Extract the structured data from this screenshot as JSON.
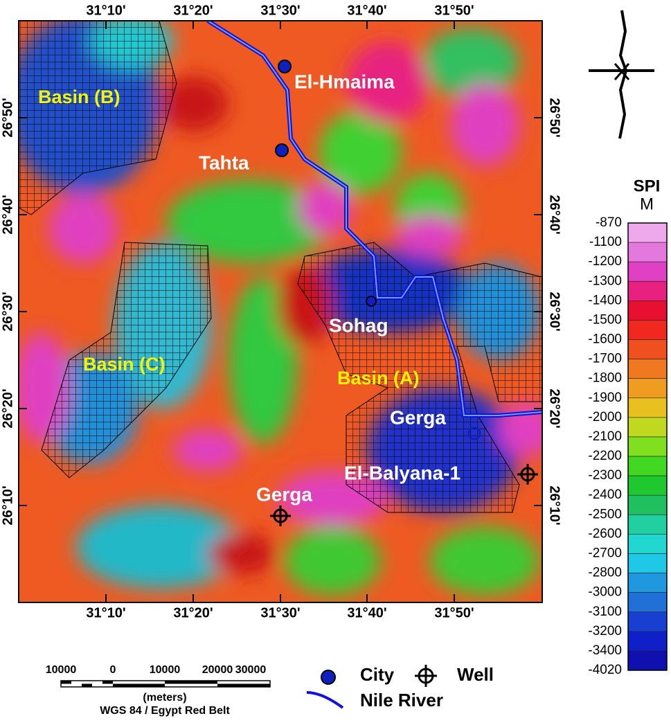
{
  "map": {
    "x_labels_top": [
      "31°10'",
      "31°20'",
      "31°30'",
      "31°40'",
      "31°50'"
    ],
    "x_labels_bottom": [
      "31°10'",
      "31°20'",
      "31°30'",
      "31°40'",
      "31°50'"
    ],
    "y_labels_left": [
      "26°50'",
      "26°40'",
      "26°30'",
      "26°20'",
      "26°10'"
    ],
    "y_labels_right": [
      "26°50'",
      "26°40'",
      "26°30'",
      "26°20'",
      "26°10'"
    ],
    "basins": [
      "Basin (B)",
      "Basin (C)",
      "Basin (A)"
    ],
    "places": [
      "El-Hmaima",
      "Tahta",
      "Sohag",
      "Gerga",
      "El-Balyana-1",
      "Gerga"
    ]
  },
  "colorbar": {
    "title": "SPI",
    "unit": "M",
    "labels": [
      -870,
      -1100,
      -1200,
      -1300,
      -1400,
      -1500,
      -1600,
      -1700,
      -1800,
      -1900,
      -2000,
      -2100,
      -2200,
      -2300,
      -2400,
      -2500,
      -2600,
      -2700,
      -2800,
      -3000,
      -3100,
      -3200,
      -3400,
      -4020
    ],
    "colors": [
      "#f0a8ec",
      "#e478dc",
      "#e040c4",
      "#e82080",
      "#e81030",
      "#f02820",
      "#f05020",
      "#f07820",
      "#f09c20",
      "#e8c020",
      "#c0d820",
      "#80e020",
      "#40d820",
      "#20c830",
      "#20c060",
      "#20d0a0",
      "#20d8d0",
      "#20c8e8",
      "#2098e0",
      "#2070d8",
      "#1840d0",
      "#1020c8",
      "#1010b0"
    ]
  },
  "scale_bar": {
    "labels": [
      10000,
      0,
      10000,
      20000,
      30000
    ],
    "unit": "(meters)",
    "projection": "WGS 84 / Egypt Red Belt"
  },
  "legend": {
    "city": "City",
    "well": "Well",
    "river": "Nile River"
  }
}
